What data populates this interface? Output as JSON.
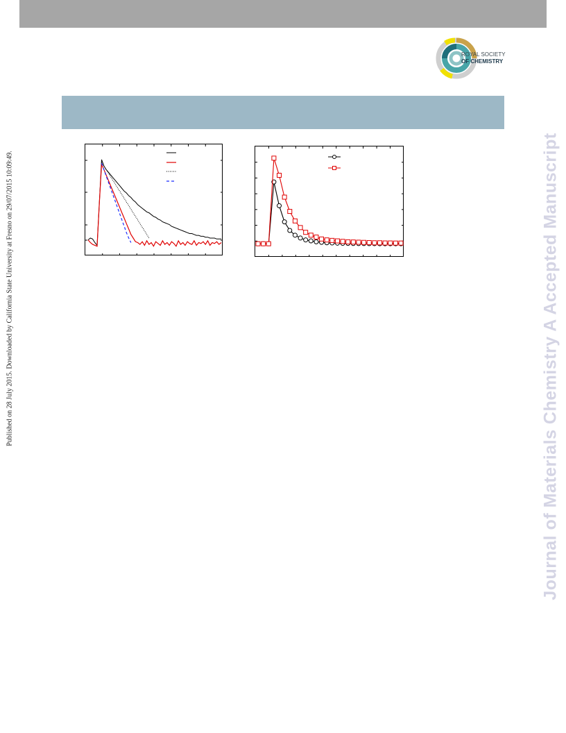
{
  "side_text": {
    "published": "Published on 28 July 2015. Downloaded by California State University at Fresno on 29/07/2015 10:09:49.",
    "journal": "Journal of Materials Chemistry A Accepted Manuscript"
  },
  "logo": {
    "line1": "ROYAL SOCIETY",
    "line2": "OF CHEMISTRY",
    "colors": [
      "#1f6f7b",
      "#48a5a8",
      "#8dc3c5",
      "#c9a24a",
      "#f1e100",
      "#cfcfcf"
    ]
  },
  "colors": {
    "top_bar": "#a6a6a6",
    "title_band": "#9db8c6",
    "series_black": "#000000",
    "series_red": "#e00000",
    "series_blue": "#1a2cff"
  },
  "chart_data": [
    {
      "type": "line",
      "legend_placement": "top-right",
      "legend_labels": [
        "",
        "",
        "",
        ""
      ],
      "grid": false,
      "series": [
        {
          "values": [
            0.08,
            0.1,
            0.09,
            0.05,
            0.02,
            0.5,
            0.97,
            0.9,
            0.86,
            0.83,
            0.8,
            0.77,
            0.74,
            0.71,
            0.68,
            0.65,
            0.62,
            0.6,
            0.57,
            0.55,
            0.52,
            0.5,
            0.47,
            0.45,
            0.43,
            0.41,
            0.39,
            0.38,
            0.36,
            0.34,
            0.33,
            0.31,
            0.3,
            0.28,
            0.27,
            0.26,
            0.25,
            0.23,
            0.22,
            0.21,
            0.2,
            0.19,
            0.18,
            0.17,
            0.16,
            0.15,
            0.15,
            0.14,
            0.13,
            0.13,
            0.12,
            0.12,
            0.11,
            0.11,
            0.1,
            0.1,
            0.1,
            0.09,
            0.09,
            0.09
          ]
        },
        {
          "values": [
            0.08,
            0.05,
            0.03,
            0.02,
            0.01,
            0.5,
            0.92,
            0.86,
            0.8,
            0.74,
            0.68,
            0.62,
            0.56,
            0.5,
            0.44,
            0.38,
            0.32,
            0.26,
            0.2,
            0.14,
            0.1,
            0.06,
            0.05,
            0.03,
            0.06,
            0.02,
            0.07,
            0.03,
            0.05,
            0.01,
            0.06,
            0.04,
            0.02,
            0.07,
            0.03,
            0.05,
            0.02,
            0.06,
            0.04,
            0.01,
            0.07,
            0.03,
            0.05,
            0.02,
            0.06,
            0.04,
            0.03,
            0.07,
            0.02,
            0.05,
            0.04,
            0.06,
            0.03,
            0.07,
            0.02,
            0.05,
            0.04,
            0.06,
            0.03,
            0.05
          ]
        },
        {
          "values": [
            null,
            null,
            null,
            null,
            null,
            null,
            0.94,
            0.9,
            0.86,
            0.82,
            0.78,
            0.74,
            0.7,
            0.66,
            0.62,
            0.58,
            0.54,
            0.5,
            0.46,
            0.42,
            0.38,
            0.34,
            0.3,
            0.26,
            0.22,
            0.18,
            0.14,
            0.1
          ]
        },
        {
          "values": [
            null,
            null,
            null,
            null,
            null,
            null,
            0.93,
            0.86,
            0.79,
            0.72,
            0.65,
            0.58,
            0.51,
            0.44,
            0.37,
            0.3,
            0.23,
            0.16,
            0.1,
            0.05
          ]
        }
      ]
    },
    {
      "type": "line",
      "legend_placement": "top-right",
      "legend_labels": [
        "",
        ""
      ],
      "grid": false,
      "series": [
        {
          "values": [
            0.05,
            0.05,
            0.05,
            0.7,
            0.45,
            0.28,
            0.19,
            0.14,
            0.11,
            0.09,
            0.08,
            0.07,
            0.065,
            0.06,
            0.058,
            0.056,
            0.055,
            0.054,
            0.053,
            0.052,
            0.052,
            0.051,
            0.051,
            0.05,
            0.05,
            0.05,
            0.05,
            0.05
          ]
        },
        {
          "values": [
            0.05,
            0.05,
            0.05,
            0.95,
            0.77,
            0.54,
            0.39,
            0.29,
            0.22,
            0.17,
            0.14,
            0.12,
            0.1,
            0.09,
            0.085,
            0.08,
            0.075,
            0.07,
            0.068,
            0.066,
            0.064,
            0.062,
            0.06,
            0.06,
            0.058,
            0.058,
            0.057,
            0.057
          ]
        }
      ]
    }
  ]
}
